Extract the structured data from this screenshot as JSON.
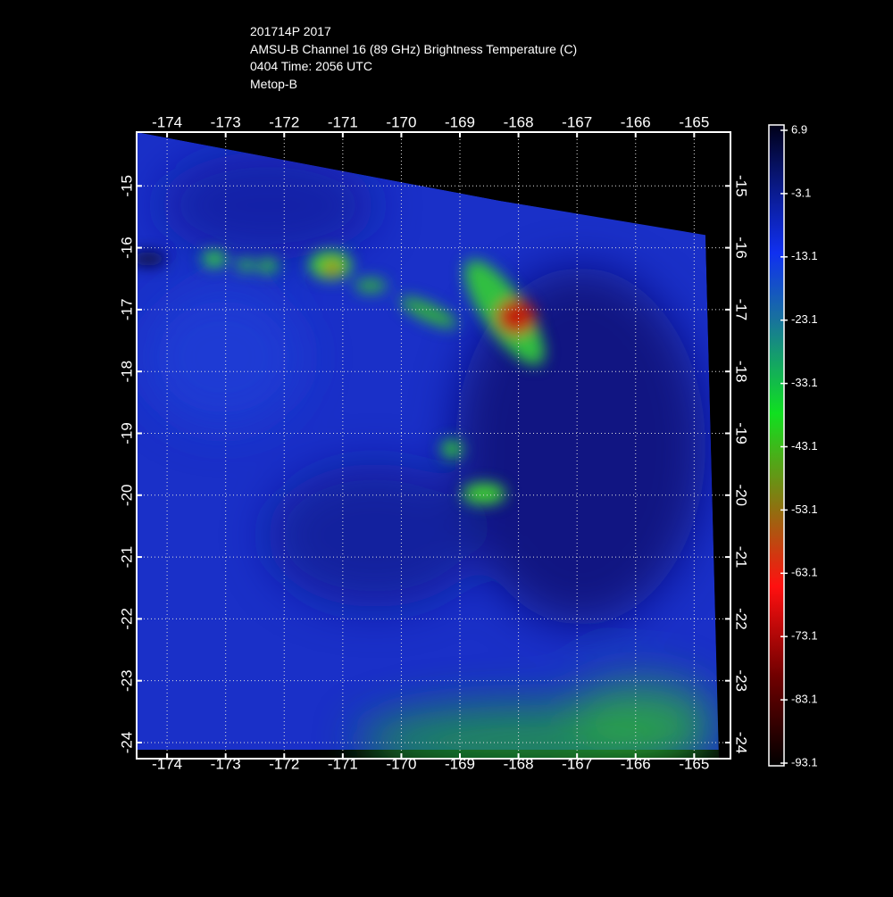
{
  "header": {
    "lines": [
      "201714P 2017",
      "AMSU-B Channel 16 (89 GHz) Brightness Temperature (C)",
      "0404 Time: 2056 UTC",
      "Metop-B"
    ]
  },
  "map": {
    "xlim": [
      -174.52,
      -164.38
    ],
    "xticks": [
      -174,
      -173,
      -172,
      -171,
      -170,
      -169,
      -168,
      -167,
      -166,
      -165
    ],
    "ylim": [
      -24.26,
      -14.13
    ],
    "yticks": [
      -15,
      -16,
      -17,
      -18,
      -19,
      -20,
      -21,
      -22,
      -23,
      -24
    ]
  },
  "colorbar": {
    "lim": [
      -93.1,
      6.9
    ],
    "ticks": [
      6.9,
      -3.1,
      -13.1,
      -23.1,
      -33.1,
      -43.1,
      -53.1,
      -63.1,
      -73.1,
      -83.1,
      -93.1
    ]
  }
}
